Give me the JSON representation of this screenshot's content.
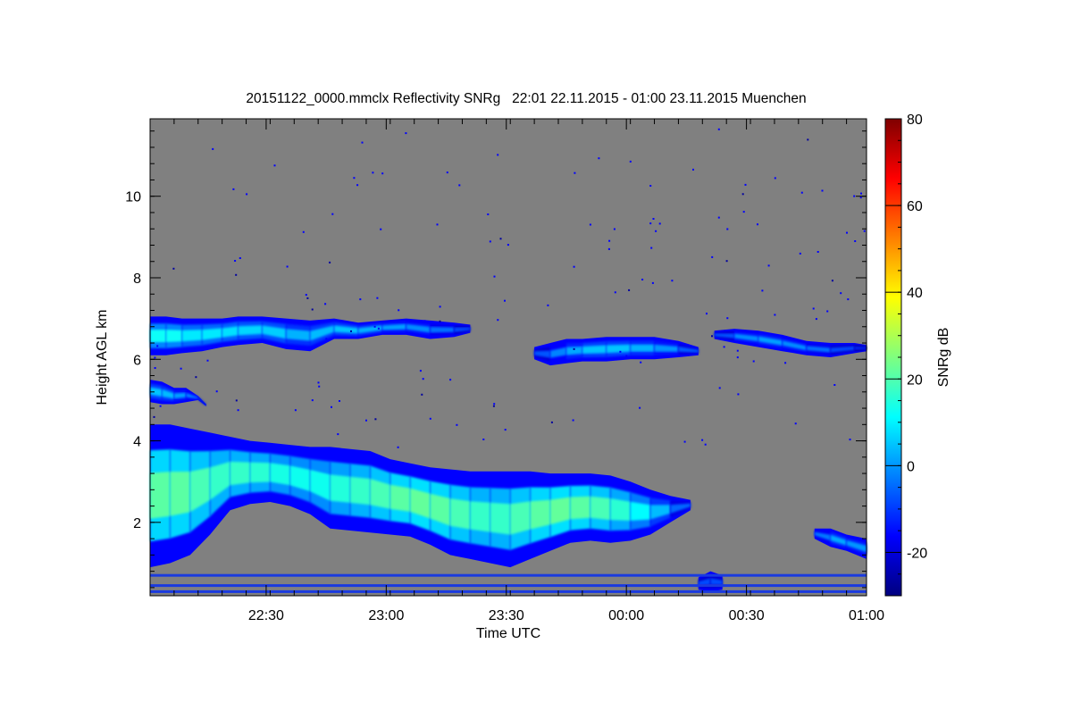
{
  "chart_data": {
    "type": "heatmap",
    "title": "20151122_0000.mmclx Reflectivity SNRg   22:01 22.11.2015 - 01:00 23.11.2015 Muenchen",
    "xlabel": "Time UTC",
    "ylabel": "Height AGL km",
    "colorbar_label": "SNRg dB",
    "x_range_minutes": [
      0,
      179
    ],
    "x_ticks": [
      {
        "label": "22:30",
        "minute": 29
      },
      {
        "label": "23:00",
        "minute": 59
      },
      {
        "label": "23:30",
        "minute": 89
      },
      {
        "label": "00:00",
        "minute": 119
      },
      {
        "label": "00:30",
        "minute": 149
      },
      {
        "label": "01:00",
        "minute": 179
      }
    ],
    "ylim": [
      0.2,
      11.9
    ],
    "y_ticks": [
      2,
      4,
      6,
      8,
      10
    ],
    "colorbar_range": [
      -30,
      80
    ],
    "colorbar_ticks": [
      -20,
      0,
      20,
      40,
      60,
      80
    ],
    "background_color": "#808080",
    "colormap": [
      "#00007f",
      "#0000ff",
      "#007fff",
      "#00ffff",
      "#7fff7f",
      "#ffff00",
      "#ff7f00",
      "#ff0000",
      "#7f0000"
    ],
    "echo_layers": [
      {
        "name": "upper-cloud-west",
        "x": [
          0,
          4,
          8,
          13,
          18,
          22,
          28,
          34,
          40,
          46,
          52,
          58,
          64,
          70,
          76,
          80
        ],
        "top": [
          7.05,
          7.05,
          7.0,
          7.0,
          7.0,
          7.05,
          7.05,
          7.0,
          6.95,
          7.0,
          6.9,
          6.95,
          7.0,
          6.95,
          6.9,
          6.85
        ],
        "base": [
          6.1,
          6.1,
          6.15,
          6.2,
          6.3,
          6.35,
          6.4,
          6.25,
          6.2,
          6.5,
          6.5,
          6.6,
          6.6,
          6.5,
          6.55,
          6.65
        ],
        "intensity": [
          10,
          14,
          10,
          8,
          10,
          6,
          8,
          4,
          2,
          6,
          4,
          2,
          0,
          -2,
          -6,
          -10
        ]
      },
      {
        "name": "upper-cloud-central",
        "x": [
          96,
          100,
          104,
          108,
          114,
          120,
          126,
          132,
          137
        ],
        "top": [
          6.3,
          6.4,
          6.5,
          6.5,
          6.55,
          6.55,
          6.55,
          6.45,
          6.3
        ],
        "base": [
          6.0,
          5.85,
          5.9,
          5.95,
          5.95,
          6.0,
          6.0,
          6.05,
          6.1
        ],
        "intensity": [
          -10,
          -4,
          0,
          4,
          6,
          4,
          2,
          -2,
          -10
        ]
      },
      {
        "name": "upper-cloud-east",
        "x": [
          141,
          146,
          152,
          158,
          164,
          170,
          176,
          179
        ],
        "top": [
          6.7,
          6.75,
          6.7,
          6.6,
          6.45,
          6.4,
          6.4,
          6.35
        ],
        "base": [
          6.5,
          6.4,
          6.3,
          6.2,
          6.1,
          6.05,
          6.15,
          6.2
        ],
        "intensity": [
          -10,
          -4,
          2,
          0,
          -2,
          -6,
          -10,
          -14
        ]
      },
      {
        "name": "mid-cloud-west",
        "x": [
          0,
          3,
          6,
          9,
          12,
          14
        ],
        "top": [
          5.5,
          5.45,
          5.3,
          5.3,
          5.1,
          4.9
        ],
        "base": [
          4.95,
          4.9,
          4.9,
          4.95,
          5.0,
          4.85
        ],
        "intensity": [
          4,
          6,
          2,
          0,
          -4,
          -10
        ]
      },
      {
        "name": "main-precipitating-layer",
        "x": [
          0,
          5,
          10,
          15,
          20,
          25,
          30,
          35,
          40,
          45,
          50,
          55,
          60,
          65,
          70,
          75,
          80,
          85,
          90,
          95,
          100,
          105,
          110,
          115,
          120,
          125,
          130,
          135
        ],
        "top": [
          4.4,
          4.4,
          4.3,
          4.2,
          4.1,
          4.0,
          3.95,
          3.9,
          3.85,
          3.85,
          3.8,
          3.75,
          3.55,
          3.45,
          3.35,
          3.3,
          3.25,
          3.25,
          3.25,
          3.25,
          3.2,
          3.2,
          3.2,
          3.15,
          3.0,
          2.8,
          2.65,
          2.55
        ],
        "base": [
          0.9,
          1.0,
          1.2,
          1.7,
          2.3,
          2.45,
          2.5,
          2.4,
          2.2,
          1.85,
          1.8,
          1.75,
          1.7,
          1.65,
          1.45,
          1.2,
          1.1,
          1.0,
          0.9,
          1.1,
          1.3,
          1.5,
          1.55,
          1.5,
          1.55,
          1.7,
          2.0,
          2.3
        ],
        "intensity": [
          20,
          22,
          20,
          18,
          16,
          18,
          14,
          14,
          12,
          14,
          16,
          18,
          20,
          22,
          22,
          20,
          18,
          16,
          18,
          20,
          22,
          22,
          20,
          18,
          14,
          8,
          0,
          -10
        ]
      },
      {
        "name": "lower-cloud-east",
        "x": [
          166,
          170,
          174,
          179
        ],
        "top": [
          1.85,
          1.85,
          1.7,
          1.6
        ],
        "base": [
          1.6,
          1.4,
          1.3,
          1.1
        ],
        "intensity": [
          -6,
          0,
          4,
          -4
        ]
      },
      {
        "name": "low-echo-00-20",
        "x": [
          137,
          140,
          143
        ],
        "top": [
          0.65,
          0.8,
          0.7
        ],
        "base": [
          0.35,
          0.3,
          0.35
        ],
        "intensity": [
          -10,
          -6,
          -10
        ]
      }
    ],
    "clutter_bands_km": [
      0.3,
      0.45,
      0.7
    ]
  }
}
